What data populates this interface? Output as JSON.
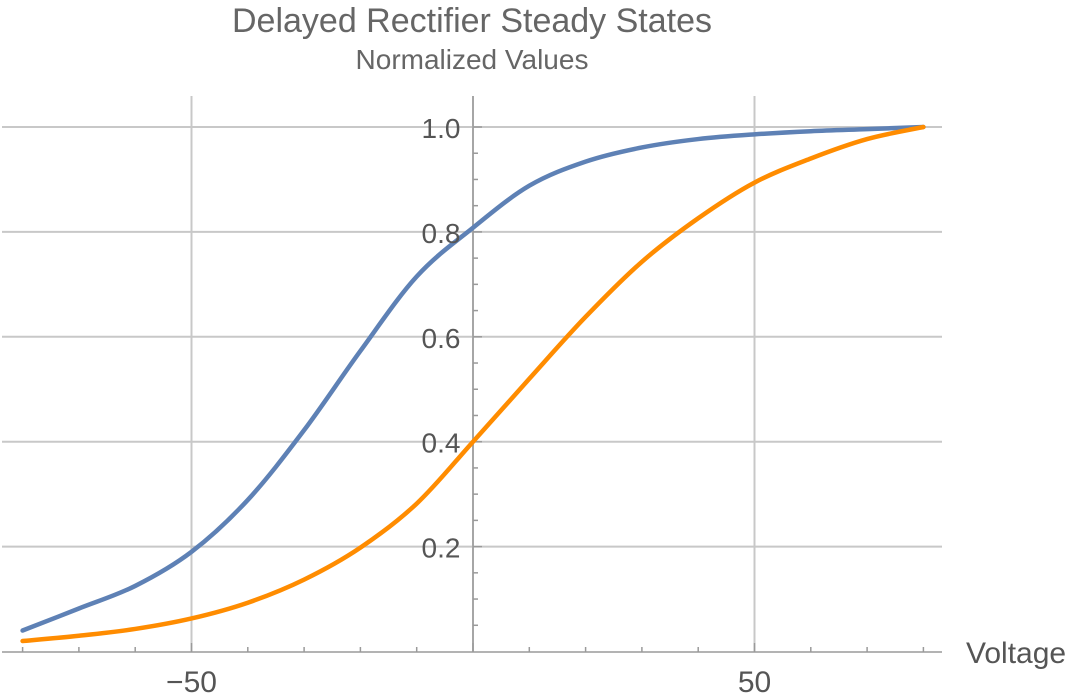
{
  "chart_data": {
    "type": "line",
    "title": "Delayed Rectifier Steady States",
    "subtitle": "Normalized Values",
    "xlabel": "Voltage",
    "ylabel": "",
    "xlim": [
      -81,
      83
    ],
    "ylim": [
      -0.01,
      1.05
    ],
    "x_ticks": [
      -50,
      50
    ],
    "y_ticks": [
      0.2,
      0.4,
      0.6,
      0.8,
      1.0
    ],
    "x_tick_labels": [
      "−50",
      "50"
    ],
    "y_tick_labels": [
      "0.2",
      "0.4",
      "0.6",
      "0.8",
      "1.0"
    ],
    "x_gridlines": [
      -50,
      0,
      50
    ],
    "y_gridlines": [
      0.2,
      0.4,
      0.6,
      0.8,
      1.0
    ],
    "grid": true,
    "legend": "none",
    "x": [
      -80,
      -70,
      -60,
      -50,
      -40,
      -30,
      -20,
      -10,
      0,
      10,
      20,
      30,
      40,
      50,
      60,
      70,
      80
    ],
    "series": [
      {
        "color": "#5e81b5",
        "values": [
          0.04,
          0.082,
          0.125,
          0.19,
          0.289,
          0.422,
          0.573,
          0.715,
          0.808,
          0.888,
          0.934,
          0.961,
          0.977,
          0.986,
          0.992,
          0.996,
          1.0
        ]
      },
      {
        "color": "#ff8c00",
        "values": [
          0.02,
          0.03,
          0.043,
          0.063,
          0.093,
          0.137,
          0.198,
          0.282,
          0.4,
          0.52,
          0.638,
          0.743,
          0.826,
          0.894,
          0.94,
          0.977,
          1.0
        ]
      }
    ]
  }
}
